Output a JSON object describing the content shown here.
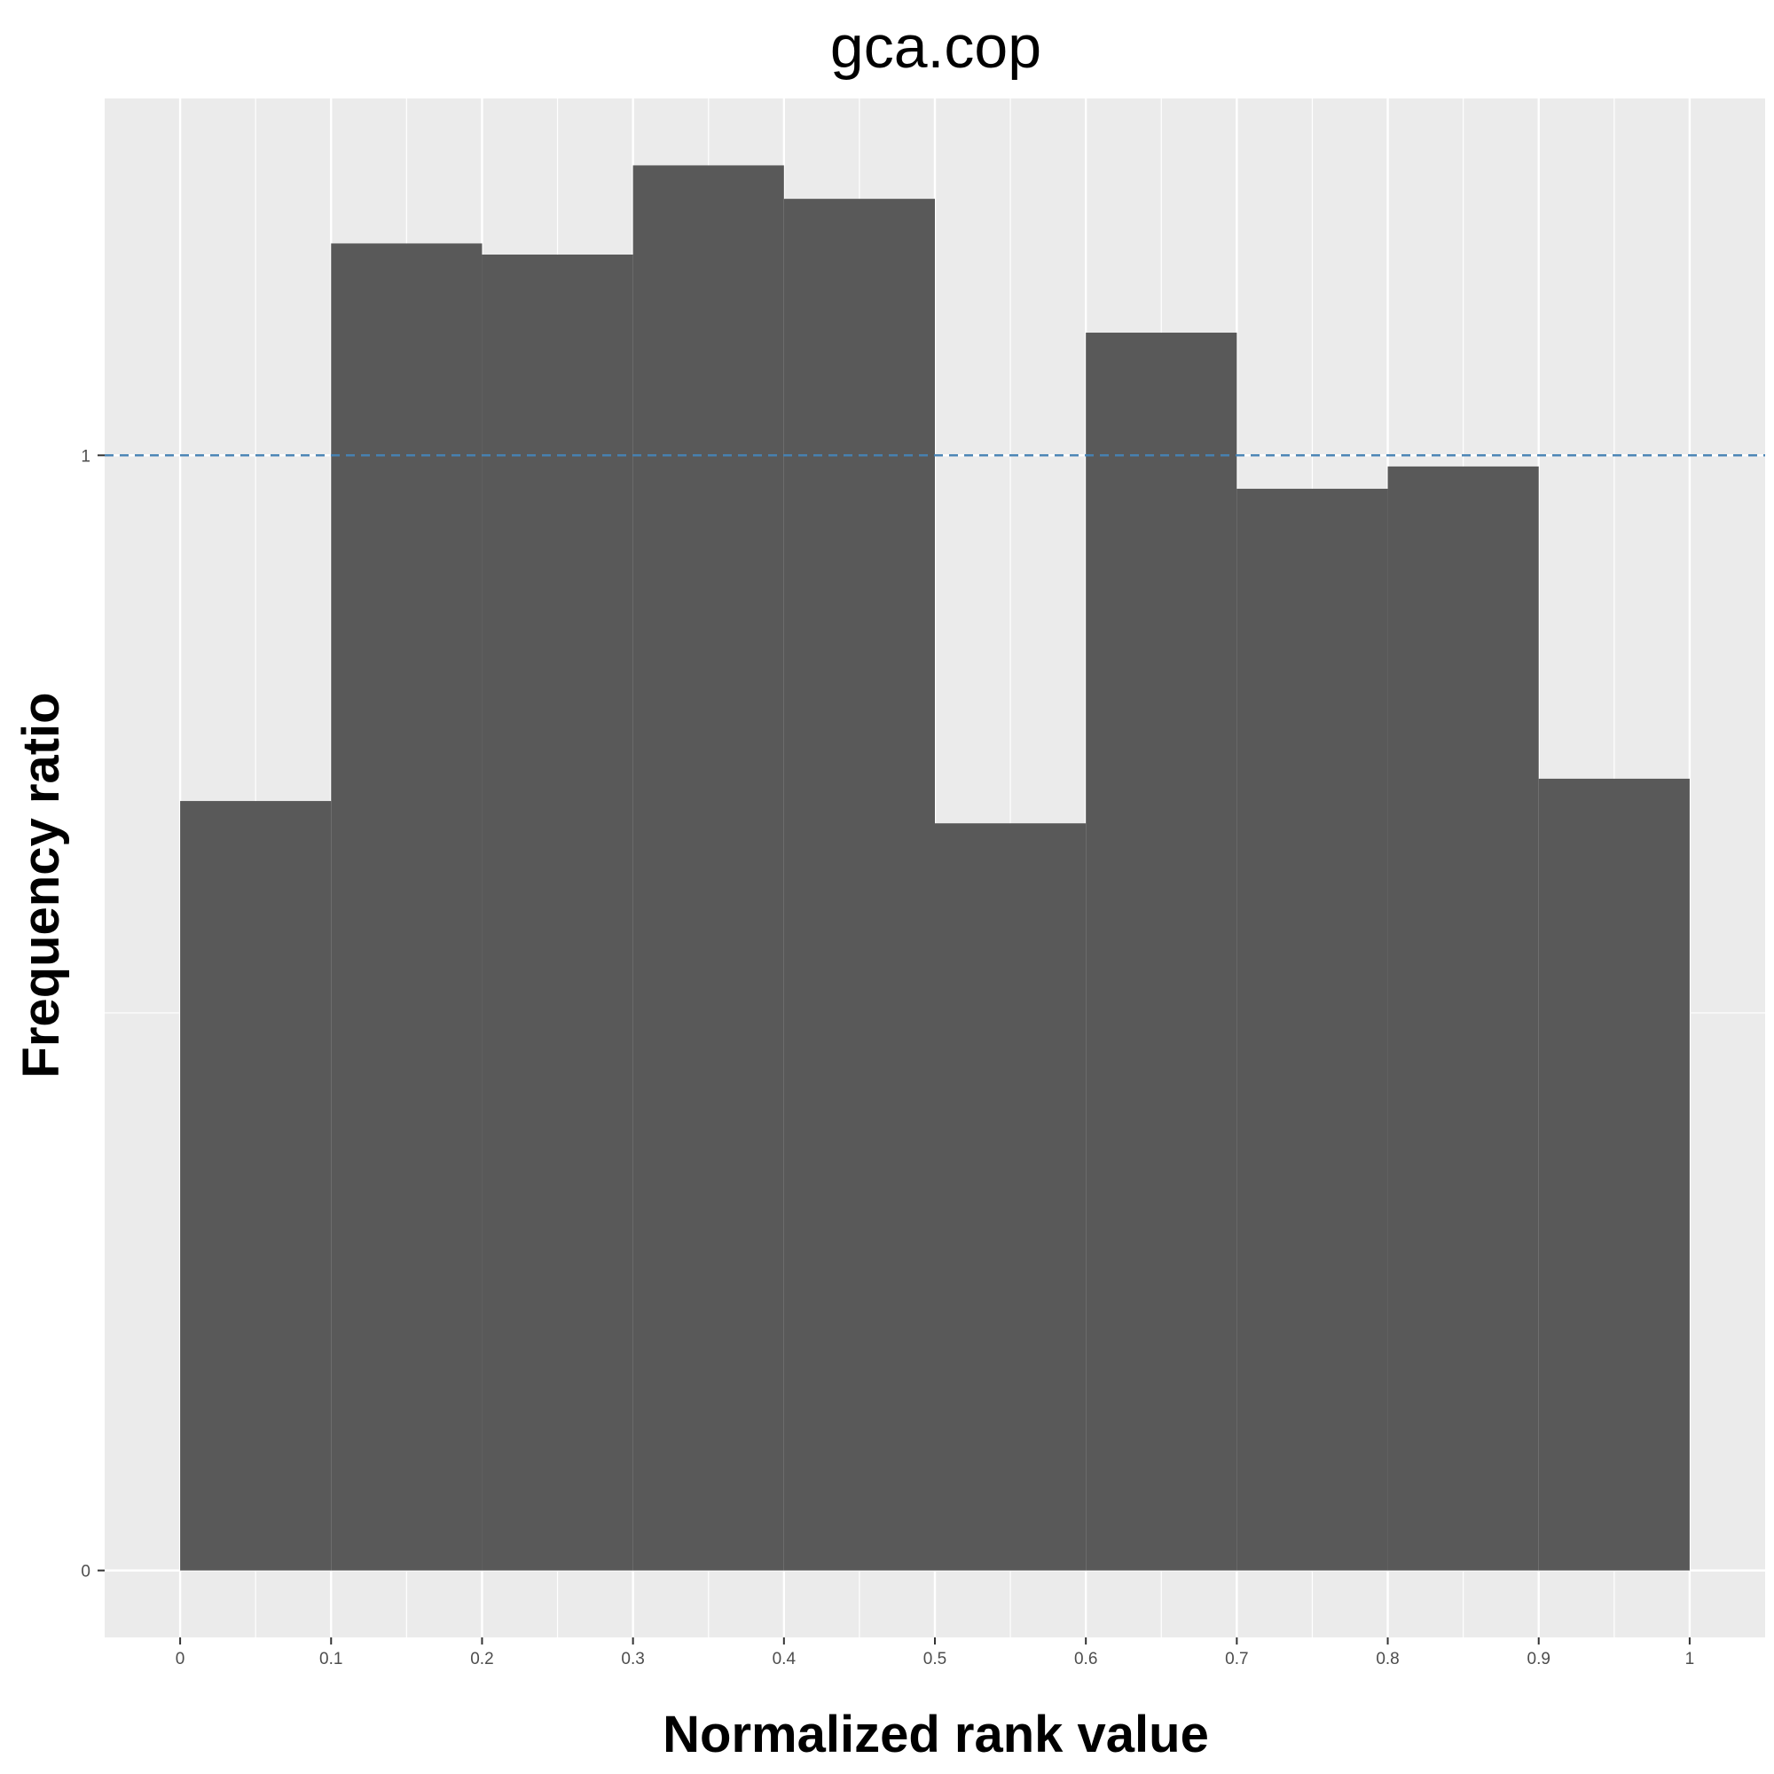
{
  "chart_data": {
    "type": "bar",
    "title": "gca.cop",
    "xlabel": "Normalized rank value",
    "ylabel": "Frequency ratio",
    "xlim": [
      -0.05,
      1.05
    ],
    "ylim": [
      -0.06,
      1.32
    ],
    "x_ticks": [
      0,
      0.1,
      0.2,
      0.3,
      0.4,
      0.5,
      0.6,
      0.7,
      0.8,
      0.9,
      1
    ],
    "x_tick_labels": [
      "0",
      "0.1",
      "0.2",
      "0.3",
      "0.4",
      "0.5",
      "0.6",
      "0.7",
      "0.8",
      "0.9",
      "1"
    ],
    "y_ticks": [
      0,
      1
    ],
    "y_tick_labels": [
      "0",
      "1"
    ],
    "bins": [
      {
        "start": 0.0,
        "end": 0.1,
        "value": 0.69
      },
      {
        "start": 0.1,
        "end": 0.2,
        "value": 1.19
      },
      {
        "start": 0.2,
        "end": 0.3,
        "value": 1.18
      },
      {
        "start": 0.3,
        "end": 0.4,
        "value": 1.26
      },
      {
        "start": 0.4,
        "end": 0.5,
        "value": 1.23
      },
      {
        "start": 0.5,
        "end": 0.6,
        "value": 0.67
      },
      {
        "start": 0.6,
        "end": 0.7,
        "value": 1.11
      },
      {
        "start": 0.7,
        "end": 0.8,
        "value": 0.97
      },
      {
        "start": 0.8,
        "end": 0.9,
        "value": 0.99
      },
      {
        "start": 0.9,
        "end": 1.0,
        "value": 0.71
      }
    ],
    "reference_line": {
      "y": 1,
      "style": "dashed",
      "color": "#4682b4"
    },
    "bar_color": "#595959",
    "panel_color": "#ebebeb",
    "grid_color": "#ffffff",
    "grid": true,
    "legend": "none"
  }
}
